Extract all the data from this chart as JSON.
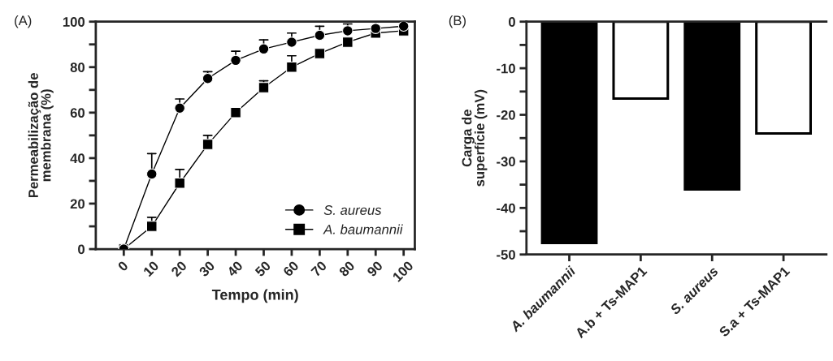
{
  "chart_data": [
    {
      "type": "line",
      "title": "(A)",
      "xlabel": "Tempo (min)",
      "ylabel": "Permeabilização de\nmembrana (%)",
      "x": [
        0,
        10,
        20,
        30,
        40,
        50,
        60,
        70,
        80,
        90,
        100
      ],
      "series": [
        {
          "name": "S. aureus",
          "color": "#000000",
          "marker": "circle",
          "values": [
            0,
            33,
            62,
            75,
            83,
            88,
            91,
            94,
            96,
            97,
            98
          ],
          "errors": [
            null,
            [
              33,
              42
            ],
            [
              62,
              66
            ],
            [
              75,
              78
            ],
            [
              83,
              87
            ],
            [
              88,
              92
            ],
            [
              91,
              95
            ],
            [
              94,
              98
            ],
            [
              96,
              99
            ],
            [
              97,
              98
            ],
            null
          ]
        },
        {
          "name": "A. baumannii",
          "color": "#000000",
          "marker": "square",
          "values": [
            0,
            10,
            29,
            46,
            60,
            71,
            80,
            86,
            91,
            95,
            96
          ],
          "errors": [
            null,
            [
              10,
              14
            ],
            [
              29,
              35
            ],
            [
              46,
              50
            ],
            null,
            [
              71,
              74
            ],
            [
              80,
              85
            ],
            null,
            null,
            null,
            null
          ]
        }
      ],
      "xlim": [
        -10,
        104
      ],
      "xticks": [
        0,
        10,
        20,
        30,
        40,
        50,
        60,
        70,
        80,
        90,
        100
      ],
      "ylim": [
        0,
        100
      ],
      "yticks": [
        0,
        {
          "value": 10,
          "label": null
        },
        20,
        {
          "value": 30,
          "label": null
        },
        40,
        {
          "value": 50,
          "label": null
        },
        60,
        {
          "value": 70,
          "label": null
        },
        80,
        {
          "value": 90,
          "label": null
        },
        100
      ],
      "legend": "bottom right",
      "grid": false
    },
    {
      "type": "bar",
      "title": "(B)",
      "ylabel": "Carga de\nsuperfície (mV)",
      "categories": [
        "A. baumannii",
        "A.b + Ts-MAP1",
        "S. aureus",
        "S.a + Ts-MAP1"
      ],
      "values": [
        -47.5,
        -16.5,
        -36,
        -24
      ],
      "colors": [
        "#000000",
        "#ffffff",
        "#000000",
        "#ffffff"
      ],
      "ylim": [
        -50,
        0
      ],
      "yticks": [
        -50,
        {
          "value": -45,
          "label": null
        },
        -40,
        {
          "value": -35,
          "label": null
        },
        -30,
        {
          "value": -25,
          "label": null
        },
        -20,
        {
          "value": -15,
          "label": null
        },
        -10,
        {
          "value": -5,
          "label": null
        },
        0
      ],
      "grid": false
    }
  ]
}
